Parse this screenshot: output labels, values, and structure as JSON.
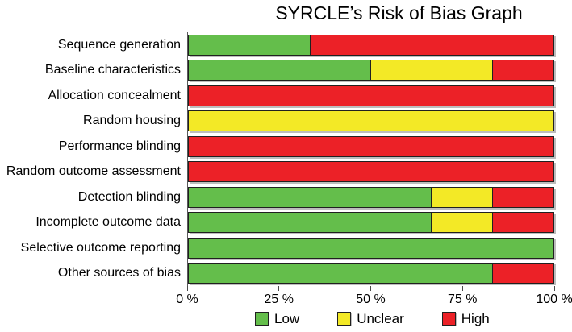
{
  "title": "SYRCLE’s Risk of Bias Graph",
  "colors": {
    "low": "#64BE4B",
    "unclear": "#F3E926",
    "high": "#EC2127",
    "bar_border": "#202020",
    "bar_shadow": "#BDBDBD",
    "axis_line": "#5A5A5A"
  },
  "x_axis": {
    "tick_values": [
      0,
      25,
      50,
      75,
      100
    ],
    "tick_labels": [
      "0 %",
      "25 %",
      "50 %",
      "75 %",
      "100 %"
    ]
  },
  "legend": [
    {
      "key": "low",
      "label": "Low"
    },
    {
      "key": "unclear",
      "label": "Unclear"
    },
    {
      "key": "high",
      "label": "High"
    }
  ],
  "chart_data": {
    "type": "bar",
    "orientation": "horizontal",
    "stacked": true,
    "unit": "percent",
    "title": "SYRCLE’s Risk of Bias Graph",
    "xlabel": "",
    "ylabel": "",
    "xlim": [
      0,
      100
    ],
    "grid": false,
    "legend_position": "bottom",
    "categories": [
      "Sequence generation",
      "Baseline characteristics",
      "Allocation concealment",
      "Random housing",
      "Performance blinding",
      "Random outcome assessment",
      "Detection blinding",
      "Incomplete outcome data",
      "Selective outcome reporting",
      "Other sources of bias"
    ],
    "series": [
      {
        "name": "Low",
        "key": "low",
        "color": "#64BE4B",
        "values": [
          33.3,
          50.0,
          0,
          0,
          0,
          0,
          66.7,
          66.7,
          100,
          83.3
        ]
      },
      {
        "name": "Unclear",
        "key": "unclear",
        "color": "#F3E926",
        "values": [
          0,
          33.3,
          0,
          100,
          0,
          0,
          16.7,
          16.7,
          0,
          0
        ]
      },
      {
        "name": "High",
        "key": "high",
        "color": "#EC2127",
        "values": [
          66.7,
          16.7,
          100,
          0,
          100,
          100,
          16.7,
          16.7,
          0,
          16.7
        ]
      }
    ]
  }
}
